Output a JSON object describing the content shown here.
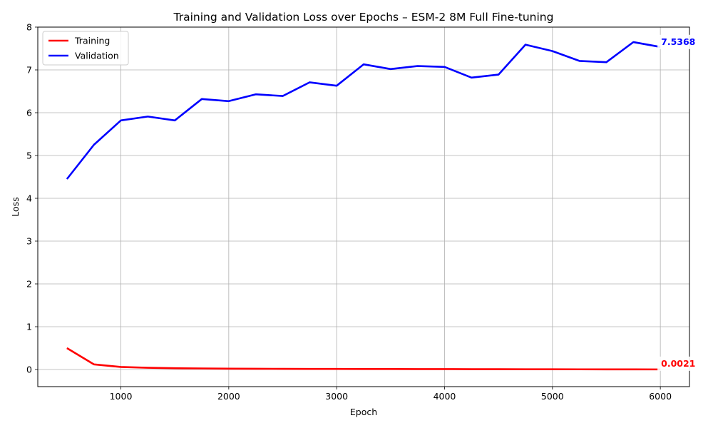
{
  "chart_data": {
    "type": "line",
    "title": "Training and Validation Loss over Epochs – ESM-2 8M Full Fine-tuning",
    "xlabel": "Epoch",
    "ylabel": "Loss",
    "xlim": [
      230,
      6270
    ],
    "ylim": [
      -0.4,
      8.0
    ],
    "xticks": [
      1000,
      2000,
      3000,
      4000,
      5000,
      6000
    ],
    "yticks": [
      0,
      1,
      2,
      3,
      4,
      5,
      6,
      7,
      8
    ],
    "grid": true,
    "legend_position": "top-left",
    "x": [
      500,
      750,
      1000,
      1250,
      1500,
      1750,
      2000,
      2250,
      2500,
      2750,
      3000,
      3250,
      3500,
      3750,
      4000,
      4250,
      4500,
      4750,
      5000,
      5250,
      5500,
      5750,
      6000
    ],
    "series": [
      {
        "name": "Training",
        "color": "#ff0000",
        "values": [
          0.5,
          0.12,
          0.06,
          0.04,
          0.03,
          0.025,
          0.02,
          0.018,
          0.016,
          0.014,
          0.013,
          0.012,
          0.011,
          0.01,
          0.009,
          0.008,
          0.007,
          0.006,
          0.005,
          0.004,
          0.003,
          0.0025,
          0.0021
        ],
        "end_label": "0.0021"
      },
      {
        "name": "Validation",
        "color": "#0000ff",
        "values": [
          4.45,
          5.25,
          5.82,
          5.91,
          5.82,
          6.32,
          6.27,
          6.43,
          6.39,
          6.71,
          6.63,
          7.13,
          7.02,
          7.09,
          7.07,
          6.82,
          6.89,
          7.59,
          7.44,
          7.21,
          7.18,
          7.65,
          7.5368
        ],
        "end_label": "7.5368"
      }
    ]
  }
}
